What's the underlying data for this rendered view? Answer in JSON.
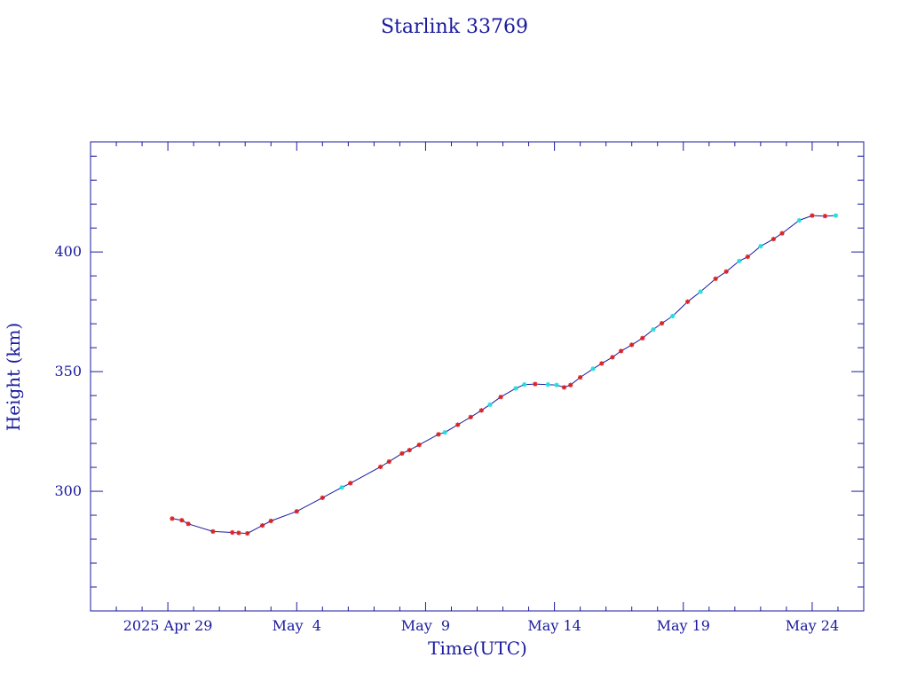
{
  "chart_data": {
    "type": "line",
    "title": "Starlink 33769",
    "xlabel": "Time(UTC)",
    "ylabel": "Height (km)",
    "colors": {
      "frame": "#1a1aa0",
      "line": "#1a1aa0",
      "marker_red": "#dd2222",
      "marker_cyan": "#22dddd"
    },
    "xaxis": {
      "type": "date",
      "min": "2025-04-26",
      "max": "2025-05-26",
      "ticks": [
        {
          "date": "2025-04-29",
          "label": "2025 Apr 29"
        },
        {
          "date": "2025-05-04",
          "label": "May  4"
        },
        {
          "date": "2025-05-09",
          "label": "May  9"
        },
        {
          "date": "2025-05-14",
          "label": "May 14"
        },
        {
          "date": "2025-05-19",
          "label": "May 19"
        },
        {
          "date": "2025-05-24",
          "label": "May 24"
        }
      ]
    },
    "yaxis": {
      "min": 250,
      "max": 446,
      "ticks": [
        {
          "value": 300,
          "label": "300"
        },
        {
          "value": 350,
          "label": "350"
        },
        {
          "value": 400,
          "label": "400"
        }
      ]
    },
    "grid": false,
    "series": [
      {
        "points": [
          {
            "x": "2025-04-29T04:00",
            "y": 288.6,
            "m": "red"
          },
          {
            "x": "2025-04-29T13:00",
            "y": 287.9,
            "m": "red"
          },
          {
            "x": "2025-04-29T19:00",
            "y": 286.4,
            "m": "red"
          },
          {
            "x": "2025-04-30T18:00",
            "y": 283.2,
            "m": "red"
          },
          {
            "x": "2025-05-01T12:00",
            "y": 282.8,
            "m": "red"
          },
          {
            "x": "2025-05-01T18:00",
            "y": 282.6,
            "m": "red"
          },
          {
            "x": "2025-05-02T02:00",
            "y": 282.4,
            "m": "red"
          },
          {
            "x": "2025-05-02T16:00",
            "y": 285.7,
            "m": "red"
          },
          {
            "x": "2025-05-03T00:00",
            "y": 287.6,
            "m": "red"
          },
          {
            "x": "2025-05-04T00:00",
            "y": 291.6,
            "m": "red"
          },
          {
            "x": "2025-05-05T00:00",
            "y": 297.3,
            "m": "red"
          },
          {
            "x": "2025-05-05T18:00",
            "y": 301.6,
            "m": "cyan"
          },
          {
            "x": "2025-05-06T02:00",
            "y": 303.4,
            "m": "red"
          },
          {
            "x": "2025-05-07T06:00",
            "y": 310.2,
            "m": "red"
          },
          {
            "x": "2025-05-07T14:00",
            "y": 312.4,
            "m": "red"
          },
          {
            "x": "2025-05-08T02:00",
            "y": 315.8,
            "m": "red"
          },
          {
            "x": "2025-05-08T09:00",
            "y": 317.2,
            "m": "red"
          },
          {
            "x": "2025-05-08T18:00",
            "y": 319.4,
            "m": "red"
          },
          {
            "x": "2025-05-09T12:00",
            "y": 323.8,
            "m": "red"
          },
          {
            "x": "2025-05-09T18:00",
            "y": 324.6,
            "m": "cyan"
          },
          {
            "x": "2025-05-10T06:00",
            "y": 327.8,
            "m": "red"
          },
          {
            "x": "2025-05-10T18:00",
            "y": 331.0,
            "m": "red"
          },
          {
            "x": "2025-05-11T04:00",
            "y": 333.8,
            "m": "red"
          },
          {
            "x": "2025-05-11T12:00",
            "y": 336.2,
            "m": "cyan"
          },
          {
            "x": "2025-05-11T22:00",
            "y": 339.4,
            "m": "red"
          },
          {
            "x": "2025-05-12T12:00",
            "y": 343.0,
            "m": "cyan"
          },
          {
            "x": "2025-05-12T20:00",
            "y": 344.6,
            "m": "cyan"
          },
          {
            "x": "2025-05-13T06:00",
            "y": 344.8,
            "m": "red"
          },
          {
            "x": "2025-05-13T18:00",
            "y": 344.6,
            "m": "cyan"
          },
          {
            "x": "2025-05-14T02:00",
            "y": 344.4,
            "m": "cyan"
          },
          {
            "x": "2025-05-14T09:00",
            "y": 343.4,
            "m": "red"
          },
          {
            "x": "2025-05-14T15:00",
            "y": 344.4,
            "m": "red"
          },
          {
            "x": "2025-05-15T00:00",
            "y": 347.6,
            "m": "red"
          },
          {
            "x": "2025-05-15T12:00",
            "y": 351.2,
            "m": "cyan"
          },
          {
            "x": "2025-05-15T20:00",
            "y": 353.4,
            "m": "red"
          },
          {
            "x": "2025-05-16T06:00",
            "y": 356.0,
            "m": "red"
          },
          {
            "x": "2025-05-16T14:00",
            "y": 358.6,
            "m": "red"
          },
          {
            "x": "2025-05-17T00:00",
            "y": 361.2,
            "m": "red"
          },
          {
            "x": "2025-05-17T10:00",
            "y": 364.0,
            "m": "red"
          },
          {
            "x": "2025-05-17T20:00",
            "y": 367.6,
            "m": "cyan"
          },
          {
            "x": "2025-05-18T04:00",
            "y": 370.2,
            "m": "red"
          },
          {
            "x": "2025-05-18T14:00",
            "y": 373.2,
            "m": "cyan"
          },
          {
            "x": "2025-05-19T04:00",
            "y": 379.2,
            "m": "red"
          },
          {
            "x": "2025-05-19T16:00",
            "y": 383.4,
            "m": "cyan"
          },
          {
            "x": "2025-05-20T06:00",
            "y": 388.8,
            "m": "red"
          },
          {
            "x": "2025-05-20T16:00",
            "y": 391.8,
            "m": "red"
          },
          {
            "x": "2025-05-21T04:00",
            "y": 396.2,
            "m": "cyan"
          },
          {
            "x": "2025-05-21T12:00",
            "y": 398.0,
            "m": "red"
          },
          {
            "x": "2025-05-22T00:00",
            "y": 402.4,
            "m": "cyan"
          },
          {
            "x": "2025-05-22T12:00",
            "y": 405.4,
            "m": "red"
          },
          {
            "x": "2025-05-22T20:00",
            "y": 407.8,
            "m": "red"
          },
          {
            "x": "2025-05-23T12:00",
            "y": 413.2,
            "m": "cyan"
          },
          {
            "x": "2025-05-24T00:00",
            "y": 415.2,
            "m": "red"
          },
          {
            "x": "2025-05-24T12:00",
            "y": 415.0,
            "m": "red"
          },
          {
            "x": "2025-05-24T22:00",
            "y": 415.2,
            "m": "cyan"
          }
        ]
      }
    ]
  }
}
